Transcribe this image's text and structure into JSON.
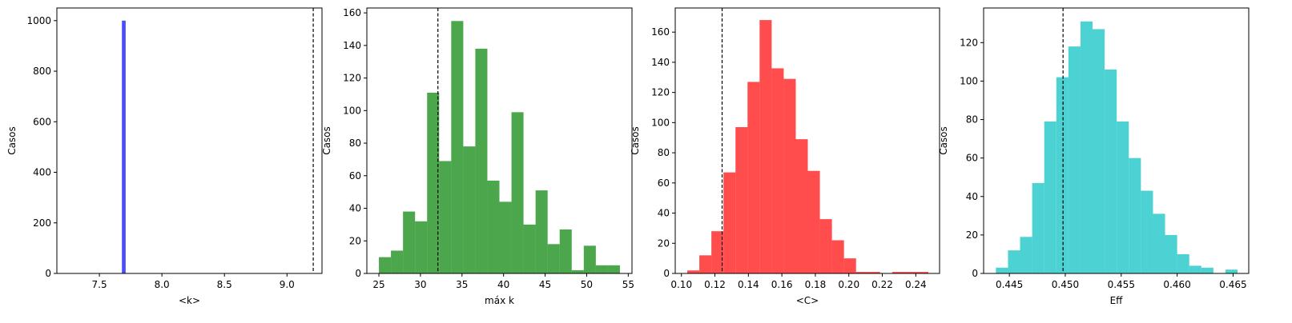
{
  "chart_data": [
    {
      "type": "histogram",
      "xlabel": "<k>",
      "ylabel": "Casos",
      "color": "#0000FF",
      "xlim": [
        7.16,
        9.28
      ],
      "ylim": [
        0,
        1050
      ],
      "xticks": [
        7.5,
        8.0,
        8.5,
        9.0
      ],
      "xtick_labels": [
        "7.5",
        "8.0",
        "8.5",
        "9.0"
      ],
      "yticks": [
        0,
        200,
        400,
        600,
        800,
        1000
      ],
      "bins": [
        {
          "x0": 7.68,
          "x1": 7.71,
          "count": 1000
        }
      ],
      "reference_line": 9.21
    },
    {
      "type": "histogram",
      "xlabel": "máx k",
      "ylabel": "Casos",
      "color": "#008000",
      "xlim": [
        23.55,
        55.45
      ],
      "ylim": [
        0,
        163
      ],
      "xticks": [
        25,
        30,
        35,
        40,
        45,
        50,
        55
      ],
      "xtick_labels": [
        "25",
        "30",
        "35",
        "40",
        "45",
        "50",
        "55"
      ],
      "yticks": [
        0,
        20,
        40,
        60,
        80,
        100,
        120,
        140,
        160
      ],
      "bins": [
        {
          "x0": 25.0,
          "x1": 26.45,
          "count": 10
        },
        {
          "x0": 26.45,
          "x1": 27.9,
          "count": 14
        },
        {
          "x0": 27.9,
          "x1": 29.35,
          "count": 38
        },
        {
          "x0": 29.35,
          "x1": 30.8,
          "count": 32
        },
        {
          "x0": 30.8,
          "x1": 32.25,
          "count": 111
        },
        {
          "x0": 32.25,
          "x1": 33.7,
          "count": 69
        },
        {
          "x0": 33.7,
          "x1": 35.15,
          "count": 155
        },
        {
          "x0": 35.15,
          "x1": 36.6,
          "count": 78
        },
        {
          "x0": 36.6,
          "x1": 38.05,
          "count": 138
        },
        {
          "x0": 38.05,
          "x1": 39.5,
          "count": 57
        },
        {
          "x0": 39.5,
          "x1": 40.95,
          "count": 44
        },
        {
          "x0": 40.95,
          "x1": 42.4,
          "count": 99
        },
        {
          "x0": 42.4,
          "x1": 43.85,
          "count": 30
        },
        {
          "x0": 43.85,
          "x1": 45.3,
          "count": 51
        },
        {
          "x0": 45.3,
          "x1": 46.75,
          "count": 18
        },
        {
          "x0": 46.75,
          "x1": 48.2,
          "count": 27
        },
        {
          "x0": 48.2,
          "x1": 49.65,
          "count": 2
        },
        {
          "x0": 49.65,
          "x1": 51.1,
          "count": 17
        },
        {
          "x0": 51.1,
          "x1": 52.55,
          "count": 5
        },
        {
          "x0": 52.55,
          "x1": 54.0,
          "count": 5
        }
      ],
      "reference_line": 32.1
    },
    {
      "type": "histogram",
      "xlabel": "<C>",
      "ylabel": "Casos",
      "color": "#FF0000",
      "xlim": [
        0.0963,
        0.2542
      ],
      "ylim": [
        0,
        176
      ],
      "xticks": [
        0.1,
        0.12,
        0.14,
        0.16,
        0.18,
        0.2,
        0.22,
        0.24
      ],
      "xtick_labels": [
        "0.10",
        "0.12",
        "0.14",
        "0.16",
        "0.18",
        "0.20",
        "0.22",
        "0.24"
      ],
      "yticks": [
        0,
        20,
        40,
        60,
        80,
        100,
        120,
        140,
        160
      ],
      "bins": [
        {
          "x0": 0.1035,
          "x1": 0.1107,
          "count": 2
        },
        {
          "x0": 0.1107,
          "x1": 0.1179,
          "count": 12
        },
        {
          "x0": 0.1179,
          "x1": 0.1251,
          "count": 28
        },
        {
          "x0": 0.1251,
          "x1": 0.1323,
          "count": 67
        },
        {
          "x0": 0.1323,
          "x1": 0.1395,
          "count": 97
        },
        {
          "x0": 0.1395,
          "x1": 0.1467,
          "count": 127
        },
        {
          "x0": 0.1467,
          "x1": 0.1539,
          "count": 168
        },
        {
          "x0": 0.1539,
          "x1": 0.1611,
          "count": 136
        },
        {
          "x0": 0.1611,
          "x1": 0.1683,
          "count": 129
        },
        {
          "x0": 0.1683,
          "x1": 0.1755,
          "count": 89
        },
        {
          "x0": 0.1755,
          "x1": 0.1827,
          "count": 68
        },
        {
          "x0": 0.1827,
          "x1": 0.1899,
          "count": 36
        },
        {
          "x0": 0.1899,
          "x1": 0.1971,
          "count": 22
        },
        {
          "x0": 0.1971,
          "x1": 0.2043,
          "count": 10
        },
        {
          "x0": 0.2043,
          "x1": 0.2115,
          "count": 1
        },
        {
          "x0": 0.2115,
          "x1": 0.2187,
          "count": 1
        },
        {
          "x0": 0.2259,
          "x1": 0.2331,
          "count": 1
        },
        {
          "x0": 0.2331,
          "x1": 0.2403,
          "count": 1
        },
        {
          "x0": 0.2403,
          "x1": 0.2475,
          "count": 1
        }
      ],
      "reference_line": 0.1243
    },
    {
      "type": "histogram",
      "xlabel": "Eff",
      "ylabel": "Casos",
      "color": "#00BFBF",
      "xlim": [
        0.4427,
        0.4664
      ],
      "ylim": [
        0,
        138
      ],
      "xticks": [
        0.445,
        0.45,
        0.455,
        0.46,
        0.465
      ],
      "xtick_labels": [
        "0.445",
        "0.450",
        "0.455",
        "0.460",
        "0.465"
      ],
      "yticks": [
        0,
        20,
        40,
        60,
        80,
        100,
        120
      ],
      "bins": [
        {
          "x0": 0.4438,
          "x1": 0.44488,
          "count": 3
        },
        {
          "x0": 0.44488,
          "x1": 0.44596,
          "count": 12
        },
        {
          "x0": 0.44596,
          "x1": 0.44704,
          "count": 19
        },
        {
          "x0": 0.44704,
          "x1": 0.44812,
          "count": 47
        },
        {
          "x0": 0.44812,
          "x1": 0.4492,
          "count": 79
        },
        {
          "x0": 0.4492,
          "x1": 0.45028,
          "count": 102
        },
        {
          "x0": 0.45028,
          "x1": 0.45136,
          "count": 118
        },
        {
          "x0": 0.45136,
          "x1": 0.45244,
          "count": 131
        },
        {
          "x0": 0.45244,
          "x1": 0.45352,
          "count": 127
        },
        {
          "x0": 0.45352,
          "x1": 0.4546,
          "count": 106
        },
        {
          "x0": 0.4546,
          "x1": 0.45568,
          "count": 79
        },
        {
          "x0": 0.45568,
          "x1": 0.45676,
          "count": 60
        },
        {
          "x0": 0.45676,
          "x1": 0.45784,
          "count": 43
        },
        {
          "x0": 0.45784,
          "x1": 0.45892,
          "count": 31
        },
        {
          "x0": 0.45892,
          "x1": 0.46,
          "count": 20
        },
        {
          "x0": 0.46,
          "x1": 0.46108,
          "count": 10
        },
        {
          "x0": 0.46108,
          "x1": 0.46216,
          "count": 4
        },
        {
          "x0": 0.46216,
          "x1": 0.46324,
          "count": 3
        },
        {
          "x0": 0.46432,
          "x1": 0.4654,
          "count": 2
        }
      ],
      "reference_line": 0.4498
    }
  ]
}
